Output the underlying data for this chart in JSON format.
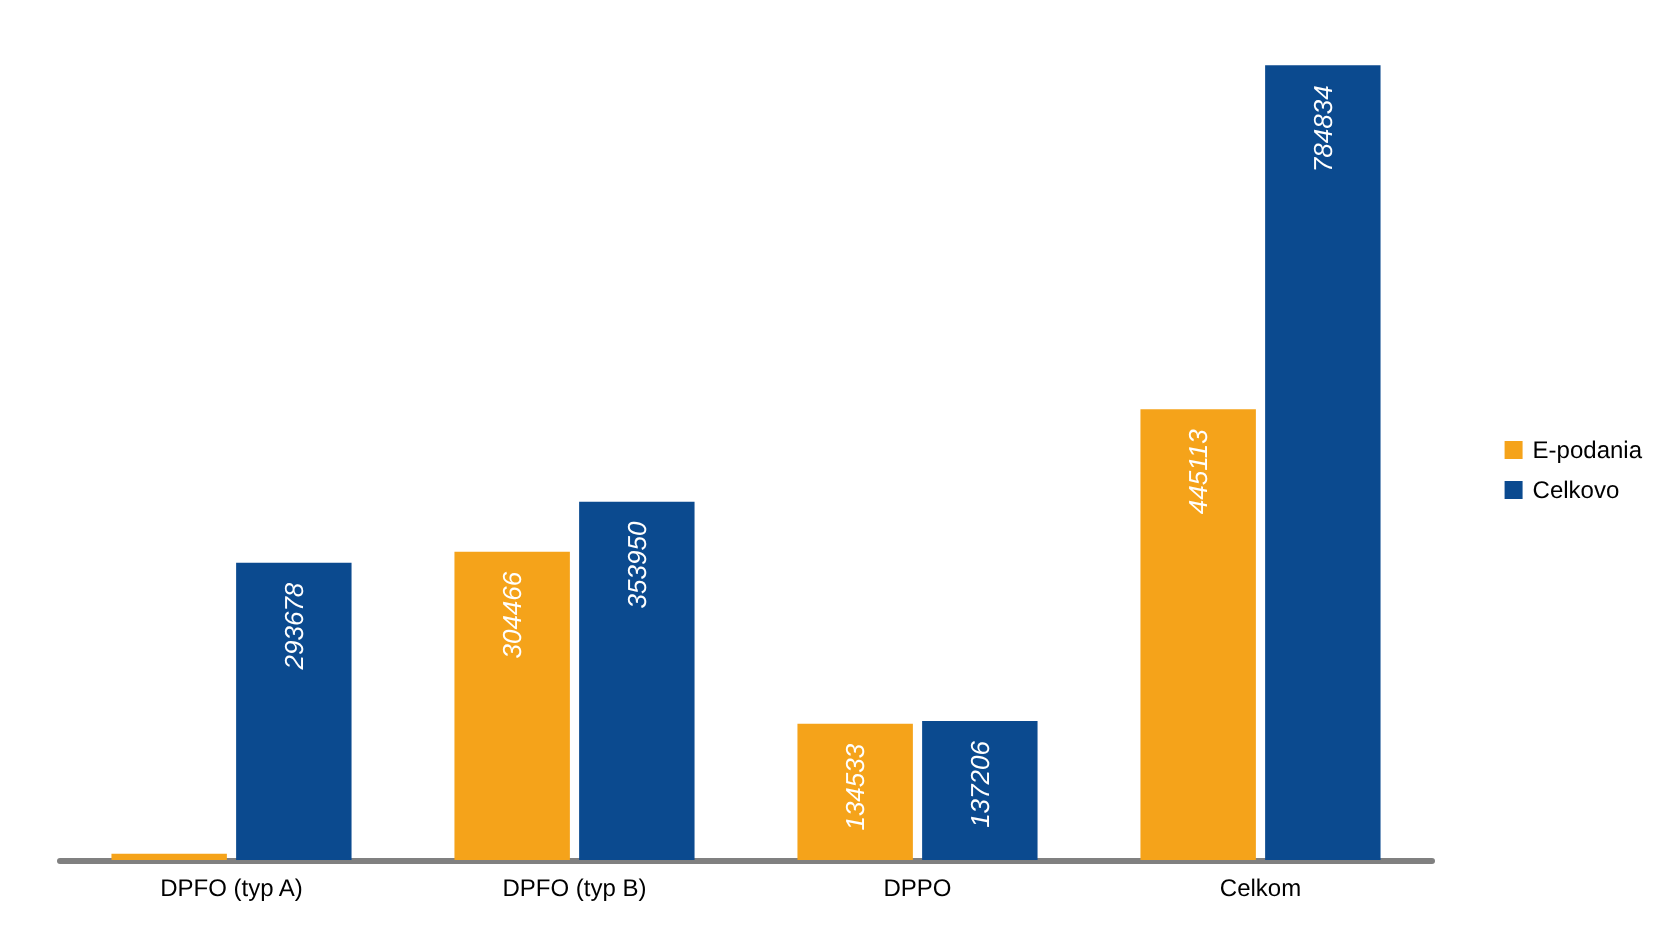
{
  "chart_data": {
    "type": "bar",
    "categories": [
      "DPFO (typ A)",
      "DPFO (typ B)",
      "DPPO",
      "Celkom"
    ],
    "series": [
      {
        "name": "E-podania",
        "color": "#f5a31a",
        "values": [
          6114,
          304466,
          134533,
          445113
        ],
        "value_labels": [
          null,
          "304466",
          "134533",
          "445113"
        ]
      },
      {
        "name": "Celkovo",
        "color": "#0b4a8f",
        "values": [
          293678,
          353950,
          137206,
          784834
        ],
        "value_labels": [
          "293678",
          "353950",
          "137206",
          "784834"
        ]
      }
    ],
    "legend": "right",
    "grid": false
  }
}
